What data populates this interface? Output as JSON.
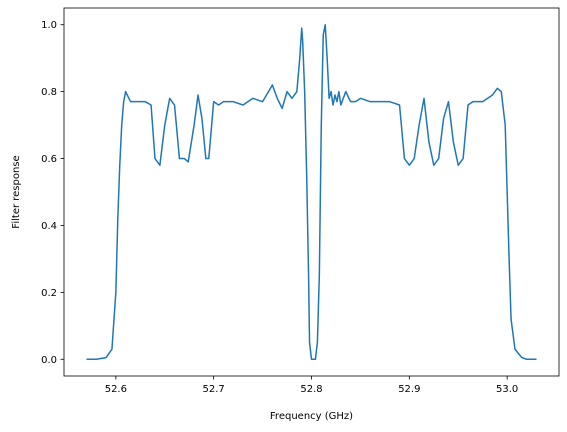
{
  "chart_data": {
    "type": "line",
    "title": "",
    "xlabel": "Frequency (GHz)",
    "ylabel": "Filter response",
    "xlim": [
      52.547,
      53.053
    ],
    "ylim": [
      -0.05,
      1.05
    ],
    "xticks": [
      52.6,
      52.7,
      52.8,
      52.9,
      53.0
    ],
    "xtick_labels": [
      "52.6",
      "52.7",
      "52.8",
      "52.9",
      "53.0"
    ],
    "yticks": [
      0.0,
      0.2,
      0.4,
      0.6,
      0.8,
      1.0
    ],
    "ytick_labels": [
      "0.0",
      "0.2",
      "0.4",
      "0.6",
      "0.8",
      "1.0"
    ],
    "grid": false,
    "legend": "none",
    "line_color": "#1f77b4",
    "series": [
      {
        "x": [
          52.57,
          52.58,
          52.59,
          52.596,
          52.6,
          52.602,
          52.604,
          52.606,
          52.608,
          52.61,
          52.615,
          52.62,
          52.625,
          52.63,
          52.636,
          52.64,
          52.645,
          52.65,
          52.655,
          52.66,
          52.665,
          52.67,
          52.674,
          52.68,
          52.684,
          52.688,
          52.692,
          52.695,
          52.7,
          52.705,
          52.71,
          52.72,
          52.73,
          52.74,
          52.75,
          52.76,
          52.765,
          52.77,
          52.775,
          52.78,
          52.785,
          52.788,
          52.79,
          52.791,
          52.793,
          52.795,
          52.797,
          52.798,
          52.8,
          52.802,
          52.804,
          52.806,
          52.808,
          52.81,
          52.812,
          52.814,
          52.816,
          52.818,
          52.82,
          52.822,
          52.824,
          52.826,
          52.828,
          52.83,
          52.835,
          52.84,
          52.845,
          52.85,
          52.86,
          52.87,
          52.88,
          52.89,
          52.895,
          52.9,
          52.905,
          52.91,
          52.915,
          52.92,
          52.925,
          52.93,
          52.935,
          52.94,
          52.945,
          52.95,
          52.955,
          52.96,
          52.965,
          52.97,
          52.975,
          52.98,
          52.985,
          52.99,
          52.994,
          52.998,
          53.0,
          53.002,
          53.004,
          53.008,
          53.015,
          53.02,
          53.03
        ],
        "y": [
          0.0,
          0.0,
          0.005,
          0.03,
          0.2,
          0.42,
          0.58,
          0.7,
          0.77,
          0.8,
          0.77,
          0.77,
          0.77,
          0.77,
          0.76,
          0.6,
          0.58,
          0.7,
          0.78,
          0.76,
          0.6,
          0.6,
          0.59,
          0.7,
          0.79,
          0.72,
          0.6,
          0.6,
          0.77,
          0.76,
          0.77,
          0.77,
          0.76,
          0.78,
          0.77,
          0.82,
          0.78,
          0.75,
          0.8,
          0.78,
          0.8,
          0.9,
          0.99,
          0.95,
          0.8,
          0.56,
          0.25,
          0.05,
          0.0,
          0.0,
          0.0,
          0.05,
          0.25,
          0.7,
          0.97,
          1.0,
          0.9,
          0.78,
          0.8,
          0.76,
          0.79,
          0.77,
          0.8,
          0.76,
          0.8,
          0.77,
          0.77,
          0.78,
          0.77,
          0.77,
          0.77,
          0.76,
          0.6,
          0.58,
          0.6,
          0.7,
          0.78,
          0.65,
          0.58,
          0.6,
          0.72,
          0.77,
          0.65,
          0.58,
          0.6,
          0.76,
          0.77,
          0.77,
          0.77,
          0.78,
          0.79,
          0.81,
          0.8,
          0.7,
          0.5,
          0.3,
          0.12,
          0.03,
          0.005,
          0.0,
          0.0
        ]
      }
    ]
  }
}
